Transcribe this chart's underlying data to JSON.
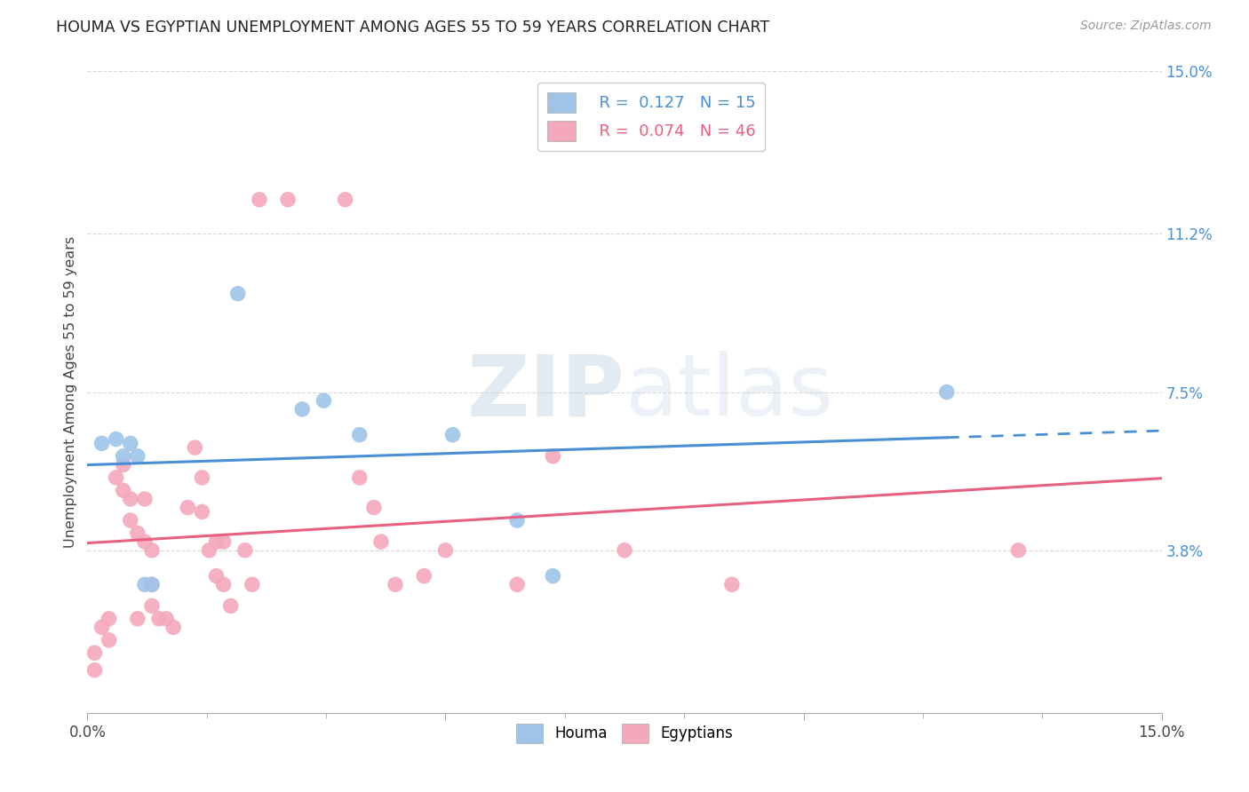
{
  "title": "HOUMA VS EGYPTIAN UNEMPLOYMENT AMONG AGES 55 TO 59 YEARS CORRELATION CHART",
  "source": "Source: ZipAtlas.com",
  "ylabel": "Unemployment Among Ages 55 to 59 years",
  "xlim": [
    0.0,
    0.15
  ],
  "ylim": [
    0.0,
    0.15
  ],
  "ytick_labels_right": [
    "15.0%",
    "11.2%",
    "7.5%",
    "3.8%"
  ],
  "ytick_vals_right": [
    0.15,
    0.112,
    0.075,
    0.038
  ],
  "houma_color": "#9ec4e8",
  "egyptian_color": "#f4a8bc",
  "houma_line_color": "#4a8fd4",
  "egyptian_line_color": "#e86080",
  "houma_R": 0.127,
  "houma_N": 15,
  "egyptian_R": 0.074,
  "egyptian_N": 46,
  "houma_points": [
    [
      0.002,
      0.063
    ],
    [
      0.004,
      0.064
    ],
    [
      0.005,
      0.06
    ],
    [
      0.006,
      0.063
    ],
    [
      0.007,
      0.06
    ],
    [
      0.008,
      0.03
    ],
    [
      0.009,
      0.03
    ],
    [
      0.021,
      0.098
    ],
    [
      0.03,
      0.071
    ],
    [
      0.033,
      0.073
    ],
    [
      0.038,
      0.065
    ],
    [
      0.051,
      0.065
    ],
    [
      0.06,
      0.045
    ],
    [
      0.065,
      0.032
    ],
    [
      0.12,
      0.075
    ]
  ],
  "egyptian_points": [
    [
      0.001,
      0.01
    ],
    [
      0.001,
      0.014
    ],
    [
      0.002,
      0.02
    ],
    [
      0.003,
      0.022
    ],
    [
      0.003,
      0.017
    ],
    [
      0.004,
      0.055
    ],
    [
      0.005,
      0.058
    ],
    [
      0.005,
      0.052
    ],
    [
      0.006,
      0.05
    ],
    [
      0.006,
      0.045
    ],
    [
      0.007,
      0.042
    ],
    [
      0.007,
      0.022
    ],
    [
      0.008,
      0.05
    ],
    [
      0.008,
      0.04
    ],
    [
      0.009,
      0.038
    ],
    [
      0.009,
      0.03
    ],
    [
      0.009,
      0.025
    ],
    [
      0.01,
      0.022
    ],
    [
      0.011,
      0.022
    ],
    [
      0.012,
      0.02
    ],
    [
      0.014,
      0.048
    ],
    [
      0.015,
      0.062
    ],
    [
      0.016,
      0.055
    ],
    [
      0.016,
      0.047
    ],
    [
      0.017,
      0.038
    ],
    [
      0.018,
      0.04
    ],
    [
      0.018,
      0.032
    ],
    [
      0.019,
      0.04
    ],
    [
      0.019,
      0.03
    ],
    [
      0.02,
      0.025
    ],
    [
      0.022,
      0.038
    ],
    [
      0.023,
      0.03
    ],
    [
      0.024,
      0.12
    ],
    [
      0.028,
      0.12
    ],
    [
      0.036,
      0.12
    ],
    [
      0.038,
      0.055
    ],
    [
      0.04,
      0.048
    ],
    [
      0.041,
      0.04
    ],
    [
      0.043,
      0.03
    ],
    [
      0.047,
      0.032
    ],
    [
      0.05,
      0.038
    ],
    [
      0.06,
      0.03
    ],
    [
      0.065,
      0.06
    ],
    [
      0.075,
      0.038
    ],
    [
      0.09,
      0.03
    ],
    [
      0.13,
      0.038
    ]
  ],
  "watermark_zip": "ZIP",
  "watermark_atlas": "atlas",
  "background_color": "#ffffff",
  "grid_color": "#d8d8d8"
}
